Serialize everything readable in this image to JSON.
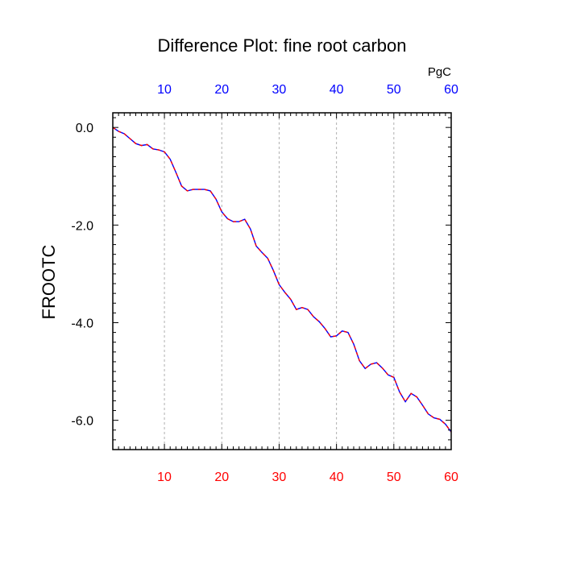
{
  "chart_data": {
    "type": "line",
    "title": "Difference Plot: fine root carbon",
    "ylabel": "FROOTC",
    "top_axis_units": "PgC",
    "xlim": [
      1,
      60
    ],
    "ylim": [
      -6.6,
      0.3
    ],
    "x_ticks": [
      10,
      20,
      30,
      40,
      50,
      60
    ],
    "x_tick_labels": [
      "10",
      "20",
      "30",
      "40",
      "50",
      "60"
    ],
    "y_ticks": [
      0,
      -2,
      -4,
      -6
    ],
    "y_tick_labels": [
      "0.0",
      "-2.0",
      "-4.0",
      "-6.0"
    ],
    "grid": "vertical-dashed",
    "colors": {
      "bottom_tick_labels": "#ff0000",
      "top_tick_labels": "#0000ff",
      "line_outer": "#0000ff",
      "line_inner": "#ff0000",
      "grid": "#b0b0b0"
    },
    "series": [
      {
        "x": [
          1,
          2,
          3,
          4,
          5,
          6,
          7,
          8,
          9,
          10,
          11,
          12,
          13,
          14,
          15,
          16,
          17,
          18,
          19,
          20,
          21,
          22,
          23,
          24,
          25,
          26,
          27,
          28,
          29,
          30,
          31,
          32,
          33,
          34,
          35,
          36,
          37,
          38,
          39,
          40,
          41,
          42,
          43,
          44,
          45,
          46,
          47,
          48,
          49,
          50,
          51,
          52,
          53,
          54,
          55,
          56,
          57,
          58,
          59,
          60
        ],
        "values": [
          0.0,
          -0.08,
          -0.13,
          -0.23,
          -0.33,
          -0.37,
          -0.35,
          -0.44,
          -0.46,
          -0.5,
          -0.65,
          -0.92,
          -1.2,
          -1.3,
          -1.27,
          -1.27,
          -1.27,
          -1.3,
          -1.47,
          -1.73,
          -1.87,
          -1.93,
          -1.93,
          -1.88,
          -2.08,
          -2.43,
          -2.56,
          -2.68,
          -2.93,
          -3.22,
          -3.38,
          -3.52,
          -3.73,
          -3.69,
          -3.73,
          -3.88,
          -3.98,
          -4.12,
          -4.29,
          -4.27,
          -4.17,
          -4.2,
          -4.44,
          -4.78,
          -4.94,
          -4.85,
          -4.82,
          -4.93,
          -5.07,
          -5.12,
          -5.42,
          -5.62,
          -5.45,
          -5.52,
          -5.69,
          -5.87,
          -5.95,
          -5.98,
          -6.08,
          -6.24
        ]
      }
    ]
  }
}
